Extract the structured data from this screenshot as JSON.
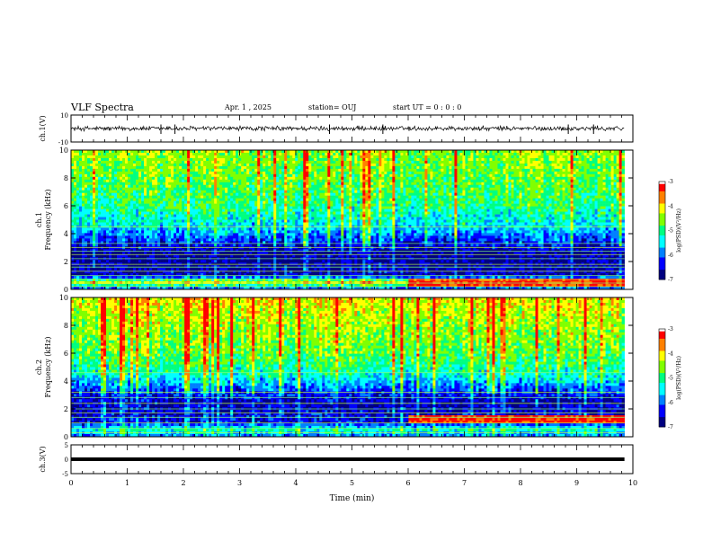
{
  "header": {
    "title": "VLF Spectra",
    "date": "Apr. 1 , 2025",
    "station": "station= OUJ",
    "start": "start UT =  0 : 0 : 0"
  },
  "colors": {
    "colormap": [
      "#000080",
      "#0000ff",
      "#0080ff",
      "#00ffff",
      "#00ff80",
      "#80ff00",
      "#ffff00",
      "#ff8000",
      "#ff0000",
      "#ffffff"
    ],
    "waveform": "#000000"
  },
  "chart_data": [
    {
      "type": "line",
      "panel": "ch1-waveform",
      "ylabel": "ch.1(V)",
      "ylim": [
        -10,
        10
      ],
      "yticks": [
        "10",
        "-10"
      ],
      "x_range_min": [
        0,
        9.85
      ],
      "series": [
        {
          "values_summary": {
            "baseline": 0,
            "noise_amplitude_v": 1.5
          }
        }
      ],
      "spikes_min": [
        1.6,
        1.85,
        4.6,
        5.55,
        8.85,
        9.3
      ]
    },
    {
      "type": "heatmap",
      "panel": "ch1-spectrogram",
      "ylabel_line1": "ch.1",
      "ylabel_line2": "Frequency (kHz)",
      "ylim": [
        0,
        10
      ],
      "yticks": [
        "0",
        "2",
        "4",
        "6",
        "8",
        "10"
      ],
      "x_range_min": [
        0,
        9.85
      ],
      "colorbar": {
        "label": "log(PSD)(V²/Hz)",
        "range": [
          -7,
          -3
        ],
        "ticks": [
          "-3",
          "-4",
          "-5",
          "-6",
          "-7"
        ]
      },
      "profile_by_khz": [
        [
          0,
          -6.3
        ],
        [
          0.5,
          -4.2
        ],
        [
          1,
          -6.6
        ],
        [
          2.5,
          -6.8
        ],
        [
          3.5,
          -6.2
        ],
        [
          4.5,
          -5.5
        ],
        [
          6,
          -5.0
        ],
        [
          8,
          -4.7
        ],
        [
          10,
          -4.5
        ]
      ],
      "horizontal_lines_khz": [
        0.2,
        0.45,
        0.7,
        1.0,
        1.3,
        1.6,
        1.8,
        2.2,
        2.5,
        2.75,
        3.0,
        3.3,
        4.5
      ],
      "enhanced_band": {
        "freq_khz": 0.5,
        "from_min": 6.0,
        "to_min": 9.85
      }
    },
    {
      "type": "heatmap",
      "panel": "ch2-spectrogram",
      "ylabel_line1": "ch.2",
      "ylabel_line2": "Frequency (kHz)",
      "ylim": [
        0,
        10
      ],
      "yticks": [
        "0",
        "2",
        "4",
        "6",
        "8",
        "10"
      ],
      "x_range_min": [
        0,
        9.85
      ],
      "colorbar": {
        "label": "log(PSD)(V²/Hz)",
        "range": [
          -7,
          -3
        ],
        "ticks": [
          "-3",
          "-4",
          "-5",
          "-6",
          "-7"
        ]
      },
      "profile_by_khz": [
        [
          0,
          -6.0
        ],
        [
          0.5,
          -5.2
        ],
        [
          1,
          -6.4
        ],
        [
          2.5,
          -6.6
        ],
        [
          3.5,
          -6.0
        ],
        [
          4.5,
          -5.2
        ],
        [
          6,
          -4.7
        ],
        [
          8,
          -4.4
        ],
        [
          10,
          -4.1
        ]
      ],
      "horizontal_lines_khz": [
        0.3,
        0.6,
        1.0,
        1.4,
        1.7,
        2.0,
        2.4,
        2.8,
        3.2,
        4.6
      ],
      "enhanced_band": {
        "freq_khz": 1.2,
        "from_min": 6.0,
        "to_min": 9.85
      }
    },
    {
      "type": "line",
      "panel": "ch3-waveform",
      "ylabel": "ch.3(V)",
      "ylim": [
        -5,
        5
      ],
      "yticks": [
        "5",
        "0",
        "-5"
      ],
      "x_range_min": [
        0,
        9.85
      ],
      "series": [
        {
          "values_summary": {
            "level_v": 0
          }
        }
      ]
    }
  ],
  "xaxis": {
    "label": "Time (min)",
    "ticks": [
      "0",
      "1",
      "2",
      "3",
      "4",
      "5",
      "6",
      "7",
      "8",
      "9",
      "10"
    ],
    "range": [
      0,
      10
    ]
  }
}
